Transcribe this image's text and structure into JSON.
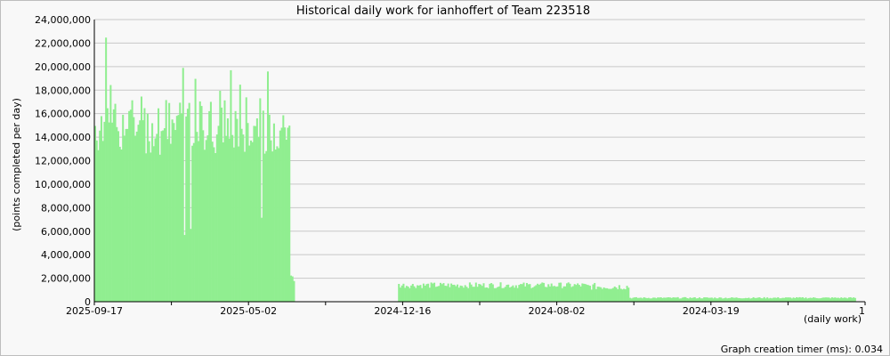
{
  "chart_data": {
    "type": "bar",
    "title": "Historical daily work for ianhoffert of Team 223518",
    "ylabel": "(points completed per day)",
    "xlabel": "(daily work)",
    "ylim": [
      0,
      24000000
    ],
    "y_ticks": [
      "0",
      "2,000,000",
      "4,000,000",
      "6,000,000",
      "8,000,000",
      "10,000,000",
      "12,000,000",
      "14,000,000",
      "16,000,000",
      "18,000,000",
      "20,000,000",
      "22,000,000",
      "24,000,000"
    ],
    "x_tick_labels": [
      "2025-09-17",
      "2025-05-02",
      "2024-12-16",
      "2024-08-02",
      "2024-03-19",
      "1"
    ],
    "bar_color": "#90ee90",
    "grid": true,
    "segments": [
      {
        "start": 0,
        "end": 127,
        "base": 15000000,
        "spread": 2500000,
        "peak": 22700000,
        "drop": 2900000
      },
      {
        "start": 127,
        "end": 130,
        "base": 2000000,
        "spread": 400000
      },
      {
        "start": 197,
        "end": 318,
        "base": 1400000,
        "spread": 250000
      },
      {
        "start": 318,
        "end": 347,
        "base": 1300000,
        "spread": 300000
      },
      {
        "start": 347,
        "end": 494,
        "base": 330000,
        "spread": 60000
      }
    ]
  },
  "footer": {
    "timer_label": "Graph creation timer (ms): 0.034"
  }
}
